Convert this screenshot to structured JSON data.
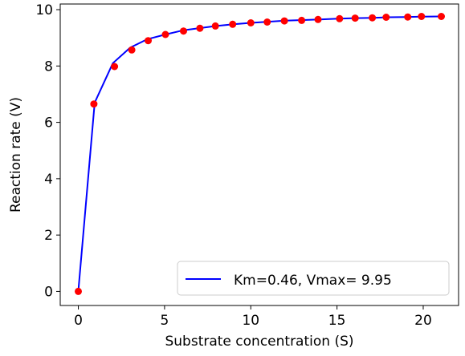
{
  "chart_data": {
    "type": "line",
    "xlabel": "Substrate concentration (S)",
    "ylabel": "Reaction rate (V)",
    "xlim": [
      -1.05,
      22.05
    ],
    "ylim": [
      -0.5,
      10.2
    ],
    "xticks": [
      0,
      5,
      10,
      15,
      20
    ],
    "yticks": [
      0,
      2,
      4,
      6,
      8,
      10
    ],
    "grid": false,
    "legend_position": "lower-right",
    "series": [
      {
        "name": "Km=0.46, Vmax= 9.95",
        "kind": "line",
        "color": "#0000ff",
        "x": [
          0,
          0.95,
          2.0,
          3.0,
          4.0,
          5.05,
          6.1,
          7.1,
          8.0,
          9.0,
          10.0,
          11.0,
          12.0,
          13.0,
          14.0,
          15.1,
          16.1,
          17.1,
          18.0,
          19.0,
          20.0,
          21.0
        ],
        "y": [
          0,
          6.7,
          8.1,
          8.65,
          8.95,
          9.12,
          9.27,
          9.35,
          9.42,
          9.48,
          9.53,
          9.57,
          9.61,
          9.63,
          9.65,
          9.68,
          9.7,
          9.71,
          9.73,
          9.74,
          9.75,
          9.76
        ]
      },
      {
        "name": "",
        "kind": "scatter",
        "color": "#ff0000",
        "x": [
          0,
          0.9,
          2.1,
          3.1,
          4.05,
          5.05,
          6.1,
          7.05,
          7.95,
          8.95,
          10.0,
          10.95,
          11.95,
          12.95,
          13.9,
          15.15,
          16.05,
          17.05,
          17.85,
          19.1,
          19.9,
          21.05
        ],
        "y": [
          0,
          6.65,
          7.98,
          8.57,
          8.9,
          9.12,
          9.24,
          9.34,
          9.42,
          9.48,
          9.53,
          9.56,
          9.6,
          9.62,
          9.65,
          9.68,
          9.7,
          9.71,
          9.73,
          9.74,
          9.76,
          9.76
        ]
      }
    ]
  }
}
